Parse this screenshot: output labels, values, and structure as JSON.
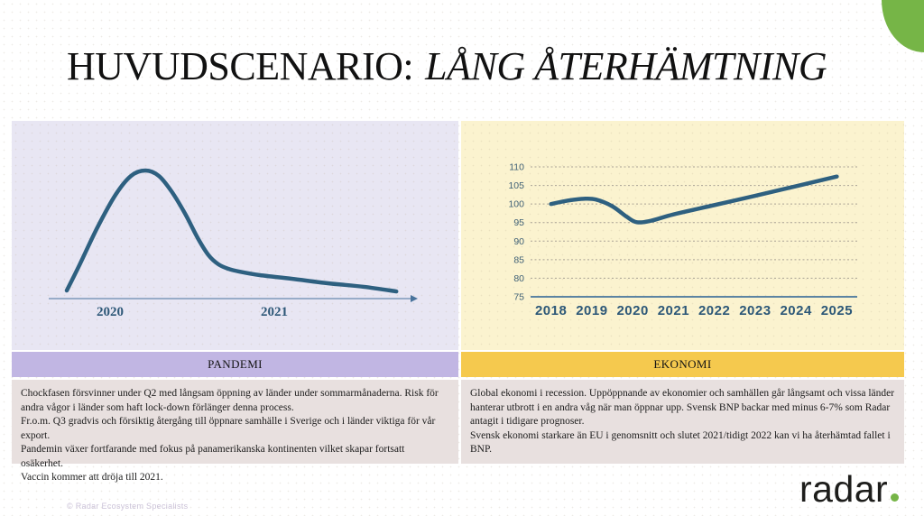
{
  "slide": {
    "title": {
      "main": "HUVUDSCENARIO:",
      "emphasis": "LÅNG ÅTERHÄMTNING"
    },
    "sections": [
      {
        "id": "pandemi",
        "header": "PANDEMI",
        "notes": [
          "Chockfasen försvinner under Q2 med långsam öppning av länder under sommarmånaderna. Risk för andra vågor i länder som haft lock-down förlänger denna process.",
          "Fr.o.m. Q3 gradvis och försiktig återgång till öppnare samhälle i Sverige och i länder viktiga för vår export.",
          "Pandemin växer fortfarande med fokus på panamerikanska kontinenten vilket skapar fortsatt osäkerhet.",
          "Vaccin kommer att dröja till 2021."
        ]
      },
      {
        "id": "ekonomi",
        "header": "EKONOMI",
        "notes": [
          "Global ekonomi i recession. Uppöppnande av ekonomier och samhällen går långsamt och vissa länder hanterar utbrott i en andra våg när man öppnar upp. Svensk BNP backar med minus 6-7% som Radar antagit i tidigare prognoser.",
          "Svensk ekonomi starkare än EU i genomsnitt och slutet 2021/tidigt 2022 kan vi ha återhämtad fallet i BNP."
        ]
      }
    ],
    "footer": {
      "copyright": "© Radar Ecosystem Specialists",
      "logo_text": "radar"
    }
  },
  "chart_data": [
    {
      "type": "line",
      "panel": "pandemi",
      "x_labels": [
        "2020",
        "2021"
      ],
      "x_label_pos": [
        0.17,
        0.625
      ],
      "curve_points": [
        [
          0.05,
          0.063
        ],
        [
          0.085,
          0.261
        ],
        [
          0.135,
          0.556
        ],
        [
          0.185,
          0.81
        ],
        [
          0.228,
          0.958
        ],
        [
          0.268,
          1.0
        ],
        [
          0.305,
          0.958
        ],
        [
          0.34,
          0.838
        ],
        [
          0.378,
          0.662
        ],
        [
          0.413,
          0.472
        ],
        [
          0.443,
          0.338
        ],
        [
          0.47,
          0.268
        ],
        [
          0.498,
          0.232
        ],
        [
          0.528,
          0.211
        ],
        [
          0.585,
          0.183
        ],
        [
          0.673,
          0.155
        ],
        [
          0.773,
          0.12
        ],
        [
          0.873,
          0.092
        ],
        [
          0.963,
          0.056
        ]
      ],
      "line_color": "#2e6080",
      "axis_color": "#49739c"
    },
    {
      "type": "line",
      "panel": "ekonomi",
      "x_ticks": [
        "2018",
        "2019",
        "2020",
        "2021",
        "2022",
        "2023",
        "2024",
        "2025"
      ],
      "xlim": [
        2017.5,
        2025.5
      ],
      "y_ticks": [
        75,
        80,
        85,
        90,
        95,
        100,
        105,
        110
      ],
      "ylim": [
        75,
        110
      ],
      "annual_values": [
        100,
        101.2,
        95.2,
        97.2,
        99.7,
        102.2,
        104.8,
        107.4
      ],
      "series": [
        {
          "name": "index",
          "points": [
            [
              2018,
              100
            ],
            [
              2018.4,
              100.9
            ],
            [
              2018.8,
              101.4
            ],
            [
              2019.1,
              101.2
            ],
            [
              2019.5,
              99.4
            ],
            [
              2019.85,
              96.6
            ],
            [
              2020.1,
              95.1
            ],
            [
              2020.45,
              95.5
            ],
            [
              2021,
              97.2
            ],
            [
              2022,
              99.7
            ],
            [
              2023,
              102.2
            ],
            [
              2024,
              104.8
            ],
            [
              2025,
              107.4
            ]
          ]
        }
      ],
      "grid": "dashed-horizontal",
      "line_color": "#2e6080",
      "grid_color": "#a9a295",
      "baseline_color": "#46749c"
    }
  ],
  "colors": {
    "accent_green": "#76b547",
    "lavender_panel": "#e8e6f3",
    "cream_panel": "#fbf3cf",
    "purple_header": "#c1b6e3",
    "gold_header": "#f5c94e",
    "note_bg": "#e8e0df",
    "chart_line": "#2e6080",
    "axis_label": "#2d5878",
    "title_color": "#111111",
    "copyright_color": "#cbc2d8",
    "logo_color": "#1d1d1b"
  }
}
